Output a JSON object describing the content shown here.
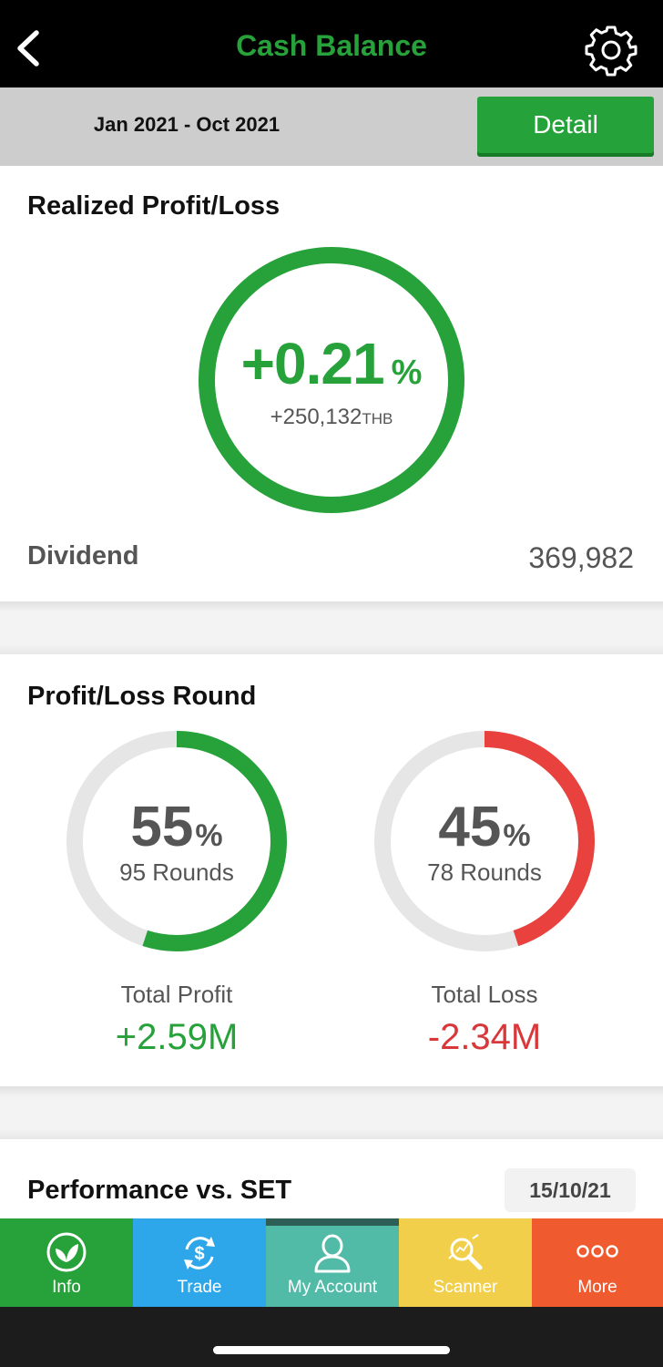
{
  "header": {
    "title": "Cash Balance",
    "back_icon": "chevron-left-icon",
    "settings_icon": "gear-icon"
  },
  "period": {
    "range": "Jan 2021 - Oct 2021",
    "detail_label": "Detail"
  },
  "realized": {
    "title": "Realized Profit/Loss",
    "percent": "+0.21",
    "percent_unit": "%",
    "amount": "+250,132",
    "currency": "THB",
    "dividend_label": "Dividend",
    "dividend_value": "369,982",
    "ring_color": "#27a23a"
  },
  "rounds": {
    "title": "Profit/Loss Round",
    "profit": {
      "percent": "55",
      "unit": "%",
      "rounds": "95 Rounds",
      "label": "Total Profit",
      "value": "+2.59M",
      "fraction": 0.55,
      "color": "#27a23a"
    },
    "loss": {
      "percent": "45",
      "unit": "%",
      "rounds": "78 Rounds",
      "label": "Total Loss",
      "value": "-2.34M",
      "fraction": 0.45,
      "color": "#e8413e"
    }
  },
  "performance": {
    "title": "Performance vs. SET",
    "date": "15/10/21"
  },
  "nav": {
    "items": [
      {
        "label": "Info",
        "icon": "leaf-icon",
        "color": "#27a23a"
      },
      {
        "label": "Trade",
        "icon": "dollar-refresh-icon",
        "color": "#2ea7ea"
      },
      {
        "label": "My Account",
        "icon": "user-icon",
        "color": "#52bba8"
      },
      {
        "label": "Scanner",
        "icon": "magnifier-chart-icon",
        "color": "#f2cf4a"
      },
      {
        "label": "More",
        "icon": "more-dots-icon",
        "color": "#ef5a2e"
      }
    ]
  }
}
